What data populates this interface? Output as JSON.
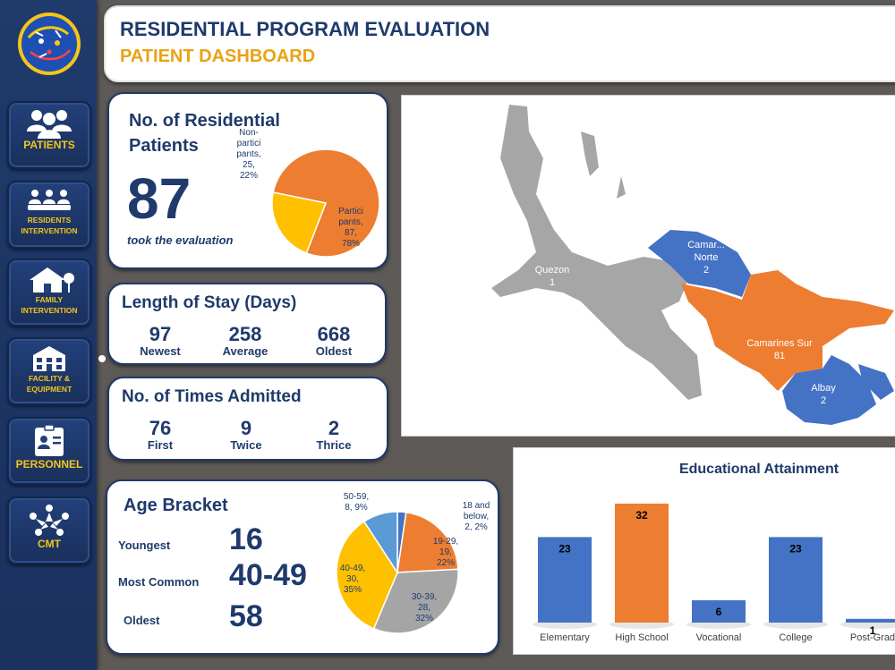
{
  "header": {
    "title": "RESIDENTIAL PROGRAM EVALUATION",
    "subtitle": "PATIENT DASHBOARD"
  },
  "nav": [
    {
      "label_lines": [
        "PATIENTS"
      ],
      "icon": "patients-icon"
    },
    {
      "label_lines": [
        "RESIDENTS",
        "INTERVENTION"
      ],
      "icon": "residents-intervention-icon"
    },
    {
      "label_lines": [
        "FAMILY",
        "INTERVENTION"
      ],
      "icon": "family-house-icon"
    },
    {
      "label_lines": [
        "FACILITY &",
        "EQUIPMENT"
      ],
      "icon": "facility-building-icon"
    },
    {
      "label_lines": [
        "PERSONNEL"
      ],
      "icon": "id-card-icon"
    },
    {
      "label_lines": [
        "CMT"
      ],
      "icon": "cmt-people-icon"
    }
  ],
  "residential": {
    "title_line1": "No. of Residential",
    "title_line2": "Patients",
    "count": "87",
    "caption": "took the evaluation"
  },
  "stay": {
    "title": "Length of Stay (Days)",
    "items": [
      {
        "value": "97",
        "label": "Newest"
      },
      {
        "value": "258",
        "label": "Average"
      },
      {
        "value": "668",
        "label": "Oldest"
      }
    ]
  },
  "admitted": {
    "title": "No. of Times Admitted",
    "items": [
      {
        "value": "76",
        "label": "First"
      },
      {
        "value": "9",
        "label": "Twice"
      },
      {
        "value": "2",
        "label": "Thrice"
      }
    ]
  },
  "age": {
    "title": "Age Bracket",
    "rows": [
      {
        "label": "Youngest",
        "value": "16"
      },
      {
        "label": "Most Common",
        "value": "40-49"
      },
      {
        "label": "Oldest",
        "value": "58"
      }
    ]
  },
  "map": {
    "regions": [
      {
        "name": "Quezon",
        "value": "1",
        "color": "#a6a6a6"
      },
      {
        "name": "Camar...",
        "sub": "Norte",
        "value": "2",
        "color": "#4472c4"
      },
      {
        "name": "Camarines Sur",
        "value": "81",
        "color": "#ed7d31"
      },
      {
        "name": "Albay",
        "value": "2",
        "color": "#4472c4"
      }
    ]
  },
  "colors": {
    "navy": "#1f3a6b",
    "gold": "#e8a314",
    "orange": "#ed7d31",
    "blue": "#4472c4",
    "yellow": "#ffc000",
    "gray": "#a5a5a5",
    "lightblue": "#5b9bd5"
  },
  "chart_data": [
    {
      "type": "pie",
      "title": "",
      "slices": [
        {
          "label_lines": [
            "Partici",
            "pants,",
            "87,",
            "78%"
          ],
          "name": "Participants",
          "value": 87,
          "pct": "78%",
          "color": "#ed7d31"
        },
        {
          "label_lines": [
            "Non-",
            "partici",
            "pants,",
            "25,",
            "22%"
          ],
          "name": "Non-participants",
          "value": 25,
          "pct": "22%",
          "color": "#ffc000"
        }
      ]
    },
    {
      "type": "pie",
      "title": "",
      "slices": [
        {
          "label_lines": [
            "18 and",
            "below,",
            "2, 2%"
          ],
          "name": "18 and below",
          "value": 2,
          "pct": "2%",
          "color": "#4472c4"
        },
        {
          "label_lines": [
            "19-29,",
            "19,",
            "22%"
          ],
          "name": "19-29",
          "value": 19,
          "pct": "22%",
          "color": "#ed7d31"
        },
        {
          "label_lines": [
            "30-39,",
            "28,",
            "32%"
          ],
          "name": "30-39",
          "value": 28,
          "pct": "32%",
          "color": "#a5a5a5"
        },
        {
          "label_lines": [
            "40-49,",
            "30,",
            "35%"
          ],
          "name": "40-49",
          "value": 30,
          "pct": "35%",
          "color": "#ffc000"
        },
        {
          "label_lines": [
            "50-59,",
            "8, 9%"
          ],
          "name": "50-59",
          "value": 8,
          "pct": "9%",
          "color": "#5b9bd5"
        }
      ]
    },
    {
      "type": "bar",
      "title": "Educational Attainment",
      "categories": [
        "Elementary",
        "High School",
        "Vocational",
        "College",
        "Post-Grad"
      ],
      "values": [
        23,
        32,
        6,
        23,
        1
      ],
      "colors": [
        "#4472c4",
        "#ed7d31",
        "#4472c4",
        "#4472c4",
        "#4472c4"
      ],
      "ylim": [
        0,
        32
      ]
    }
  ]
}
